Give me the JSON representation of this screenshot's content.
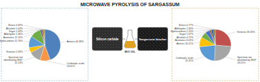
{
  "title": "MICROWAVE PYROLYSIS OF SARGASSUM",
  "center": {
    "left": "Silicon carbide",
    "middle": "BIO OIL",
    "right": "Sargassum biochar"
  },
  "chart_data": [
    {
      "type": "pie",
      "categories": [
        "Amines",
        "Carboxylic acids",
        "Spectrum not identified by NIST",
        "Ketones",
        "Hydrocarbons",
        "Aromatics",
        "Aldehydes",
        "Sugar",
        "Alcohols",
        "Esters"
      ],
      "values": [
        44.38,
        10.61,
        12.14,
        5.33,
        11.76,
        11.16,
        1.46,
        1.43,
        1.04,
        0.69
      ],
      "value_labels": [
        "44.38%",
        "10.61%",
        "12.14%",
        "5.33%",
        "11.76%",
        "11.16%",
        "1.46%",
        "1.43%",
        "1.04%",
        "0.69%"
      ],
      "colors": [
        "#4f81bd",
        "#f79646",
        "#a5a5a5",
        "#ffc000",
        "#5b9bd5",
        "#70ad47",
        "#264478",
        "#9e480e",
        "#636363",
        "#997300"
      ],
      "data_labels": true
    },
    {
      "type": "pie",
      "categories": [
        "Ketones",
        "Spectrum not identified by NIST",
        "Carboxylic acids",
        "Amines",
        "Aromatics",
        "Alcohols",
        "Sugar",
        "Hydrocarbons",
        "Aldehydes",
        "Esters"
      ],
      "values": [
        26.35,
        24.51,
        22.32,
        10.21,
        6.05,
        4.72,
        1.67,
        2.1,
        1.3,
        0.77
      ],
      "value_labels": [
        "26.35%",
        "24.51%",
        "22.32%",
        "10.21%",
        "6.05%",
        "4.72%",
        "1.67%",
        "2.10%",
        "1.30%",
        "0.77%"
      ],
      "colors": [
        "#c0504d",
        "#a5a5a5",
        "#5b9bd5",
        "#ffc000",
        "#70ad47",
        "#4472c4",
        "#9e480e",
        "#255e91",
        "#264478",
        "#997300"
      ],
      "data_labels": true
    }
  ]
}
